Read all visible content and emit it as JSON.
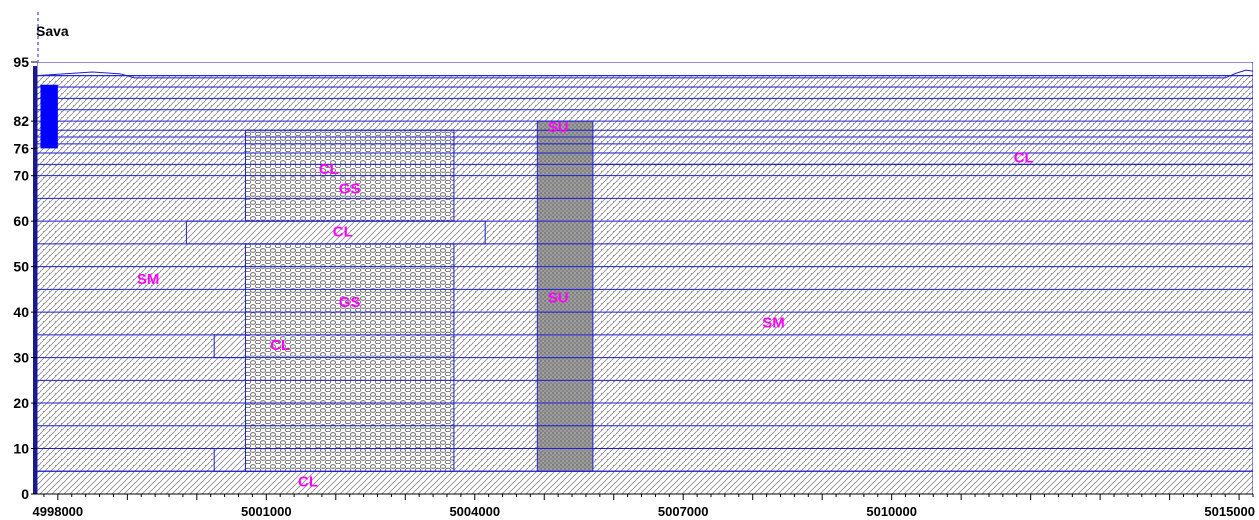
{
  "title": "Sava",
  "colors": {
    "frame": "#1f1fd0",
    "label": "#ff00ff",
    "well": "#0000ff",
    "hatch": "#6f6f6f",
    "gravel": "#5a5a5a"
  },
  "chart_data": {
    "type": "geologic-cross-section",
    "xlim": [
      4997700,
      5015200
    ],
    "ylim": [
      0,
      95
    ],
    "y_ticks": [
      0,
      10,
      20,
      30,
      40,
      50,
      60,
      70,
      76,
      82,
      95
    ],
    "x_ticks": [
      4998000,
      5001000,
      5004000,
      5007000,
      5010000,
      5015000
    ],
    "y_tick_labels": [
      "0",
      "10",
      "20",
      "30",
      "40",
      "50",
      "60",
      "70",
      "76",
      "82",
      "95"
    ],
    "x_tick_labels": [
      "4998000",
      "5001000",
      "5004000",
      "5007000",
      "5010000",
      "5015000"
    ],
    "layer_boundaries": [
      5,
      10,
      15,
      20,
      25,
      30,
      35,
      40,
      45,
      50,
      55,
      60,
      65,
      70,
      72.5,
      75,
      77,
      78.5,
      80,
      82,
      84.5,
      87,
      89.5,
      92
    ],
    "units": [
      {
        "material": "CL",
        "x_from": 4997700,
        "x_to": 5015200,
        "y_from": 0,
        "y_to": 5
      },
      {
        "material": "CL",
        "x_from": 5000250,
        "x_to": 5002650,
        "y_from": 5,
        "y_to": 10
      },
      {
        "material": "CL",
        "x_from": 5000250,
        "x_to": 5002650,
        "y_from": 30,
        "y_to": 35
      },
      {
        "material": "CL",
        "x_from": 4999850,
        "x_to": 5004150,
        "y_from": 55,
        "y_to": 60
      },
      {
        "material": "CL",
        "x_from": 5001150,
        "x_to": 5002650,
        "y_from": 70,
        "y_to": 72.5
      },
      {
        "material": "CL",
        "x_from": 5005500,
        "x_to": 5015200,
        "y_from": 72.5,
        "y_to": 75
      },
      {
        "material": "GS",
        "x_from": 5000700,
        "x_to": 5003700,
        "y_from": 5,
        "y_to": 55
      },
      {
        "material": "GS",
        "x_from": 5000700,
        "x_to": 5003700,
        "y_from": 60,
        "y_to": 80
      },
      {
        "material": "SU",
        "x_from": 5004900,
        "x_to": 5005700,
        "y_from": 5,
        "y_to": 82
      },
      {
        "material": "SM",
        "x_from": 4997700,
        "x_to": 5015200,
        "y_from": 5,
        "y_to": 92
      }
    ],
    "labels": [
      {
        "text": "CL",
        "x": 5001600,
        "y": 2.5,
        "size": "normal"
      },
      {
        "text": "CL",
        "x": 5001200,
        "y": 32.5,
        "size": "normal"
      },
      {
        "text": "CL",
        "x": 5002100,
        "y": 57.5,
        "size": "normal"
      },
      {
        "text": "CL",
        "x": 5001900,
        "y": 71.2,
        "size": "normal"
      },
      {
        "text": "CL",
        "x": 5011900,
        "y": 73.8,
        "size": "normal"
      },
      {
        "text": "GS",
        "x": 5002200,
        "y": 42,
        "size": "normal"
      },
      {
        "text": "GS",
        "x": 5002200,
        "y": 67,
        "size": "normal"
      },
      {
        "text": "SU",
        "x": 5005200,
        "y": 43,
        "size": "normal"
      },
      {
        "text": "SU",
        "x": 5005200,
        "y": 80.5,
        "size": "small"
      },
      {
        "text": "SM",
        "x": 4999300,
        "y": 47,
        "size": "normal"
      },
      {
        "text": "SM",
        "x": 5008300,
        "y": 37.5,
        "size": "normal"
      }
    ],
    "well": {
      "x_from": 4997750,
      "x_to": 4998000,
      "y_from": 76,
      "y_to": 90
    },
    "surface_profile": [
      [
        4997700,
        92
      ],
      [
        4998000,
        92.3
      ],
      [
        4998500,
        92.8
      ],
      [
        4998900,
        92.4
      ],
      [
        4999100,
        91.5
      ],
      [
        5000000,
        91.5
      ],
      [
        5005000,
        91.5
      ],
      [
        5010000,
        91.5
      ],
      [
        5014800,
        91.5
      ],
      [
        5014950,
        92.5
      ],
      [
        5015100,
        93.2
      ],
      [
        5015200,
        93
      ]
    ]
  }
}
